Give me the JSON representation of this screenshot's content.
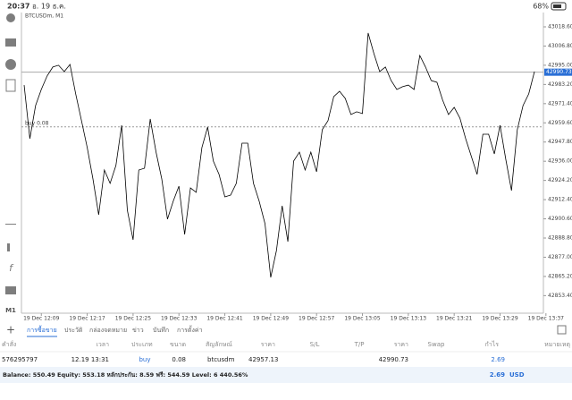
{
  "status_bar": {
    "time": "20:37",
    "date": "อ. 19 ธ.ค.",
    "battery": "68%"
  },
  "chart_data": {
    "type": "line",
    "title": "BTCUSDm, M1",
    "color": "#000000",
    "categories": [
      null,
      null,
      null,
      "19 Dec 12:09",
      null,
      null,
      null,
      null,
      null,
      null,
      null,
      "19 Dec 12:17",
      null,
      null,
      null,
      null,
      null,
      null,
      null,
      "19 Dec 12:25",
      null,
      null,
      null,
      null,
      null,
      null,
      null,
      "19 Dec 12:33",
      null,
      null,
      null,
      null,
      null,
      null,
      null,
      "19 Dec 12:41",
      null,
      null,
      null,
      null,
      null,
      null,
      null,
      "19 Dec 12:49",
      null,
      null,
      null,
      null,
      null,
      null,
      null,
      "19 Dec 12:57",
      null,
      null,
      null,
      null,
      null,
      null,
      null,
      "19 Dec 13:05",
      null,
      null,
      null,
      null,
      null,
      null,
      null,
      "19 Dec 13:13",
      null,
      null,
      null,
      null,
      null,
      null,
      null,
      "19 Dec 13:21",
      null,
      null,
      null,
      null,
      null,
      null,
      null,
      "19 Dec 13:29",
      null,
      null,
      null,
      null,
      null,
      null,
      null,
      "19 Dec 13:37"
    ],
    "values": [
      42982.8,
      42949.9,
      42970.2,
      42980.1,
      42988.4,
      42993.9,
      42995.0,
      42991.1,
      42995.5,
      42977.4,
      42960.9,
      42944.4,
      42925.1,
      42903.1,
      42930.6,
      42922.4,
      42933.4,
      42958.1,
      42905.9,
      42887.7,
      42930.6,
      42931.7,
      42962.0,
      42941.6,
      42925.1,
      42900.4,
      42911.4,
      42920.7,
      42891.0,
      42919.6,
      42916.9,
      42944.4,
      42957.0,
      42936.1,
      42927.9,
      42914.1,
      42915.2,
      42922.4,
      42947.1,
      42947.1,
      42922.4,
      42911.4,
      42897.6,
      42864.6,
      42881.1,
      42908.6,
      42886.6,
      42936.1,
      42941.6,
      42930.6,
      42941.6,
      42929.5,
      42955.4,
      42960.9,
      42975.7,
      42979.0,
      42974.6,
      42964.7,
      42966.4,
      42965.3,
      43014.8,
      43002.1,
      42991.1,
      42993.9,
      42985.6,
      42980.1,
      42981.8,
      42982.8,
      42980.1,
      43001.0,
      42993.9,
      42985.6,
      42984.5,
      42973.5,
      42964.7,
      42969.1,
      42962.5,
      42949.9,
      42938.9,
      42927.9,
      42952.6,
      42952.6,
      42940.5,
      42958.1,
      42937.2,
      42918.0,
      42955.4,
      42970.2,
      42977.4,
      42991.1,
      null,
      null
    ],
    "ylim": [
      42843.7,
      43025.2
    ],
    "yticks": [
      {
        "value": 42853.4,
        "label": "42853.40"
      },
      {
        "value": 42865.2,
        "label": "42865.20"
      },
      {
        "value": 42877,
        "label": "42877.00"
      },
      {
        "value": 42888.8,
        "label": "42888.80"
      },
      {
        "value": 42900.6,
        "label": "42900.60"
      },
      {
        "value": 42912.4,
        "label": "42912.40"
      },
      {
        "value": 42924.2,
        "label": "42924.20"
      },
      {
        "value": 42936,
        "label": "42936.00"
      },
      {
        "value": 42947.8,
        "label": "42947.80"
      },
      {
        "value": 42959.6,
        "label": "42959.60"
      },
      {
        "value": 42971.4,
        "label": "42971.40"
      },
      {
        "value": 42983.2,
        "label": "42983.20"
      },
      {
        "value": 42995,
        "label": "42995.00"
      },
      {
        "value": 43006.8,
        "label": "43006.80"
      },
      {
        "value": 43018.6,
        "label": "43018.60"
      }
    ],
    "current_price": 42990.73,
    "buy_line": {
      "label": "buy 0.08",
      "value": 42957.13
    },
    "timeframe": "M1"
  },
  "tabs": [
    "การซื้อขาย",
    "ประวัติ",
    "กล่องจดหมาย",
    "ข่าว",
    "บันทึก",
    "การตั้งค่า"
  ],
  "table": {
    "header": [
      "คำสั่ง",
      "เวลา",
      "ประเภท",
      "ขนาด",
      "สัญลักษณ์",
      "ราคา",
      "S/L",
      "T/P",
      "ราคา",
      "Swap",
      "กำไร",
      "หมายเหตุ"
    ],
    "rows": [
      [
        "576295797",
        "12.19 13:31",
        "buy",
        "0.08",
        "btcusdm",
        "42957.13",
        "",
        "",
        "42990.73",
        "",
        "2.69",
        ""
      ]
    ]
  },
  "footer": {
    "summary": "Balance: 550.49 Equity: 553.18 หลักประกัน: 8.59 ฟรี: 544.59 Level: 6 440.56%",
    "profit": "2.69",
    "currency": "USD"
  }
}
